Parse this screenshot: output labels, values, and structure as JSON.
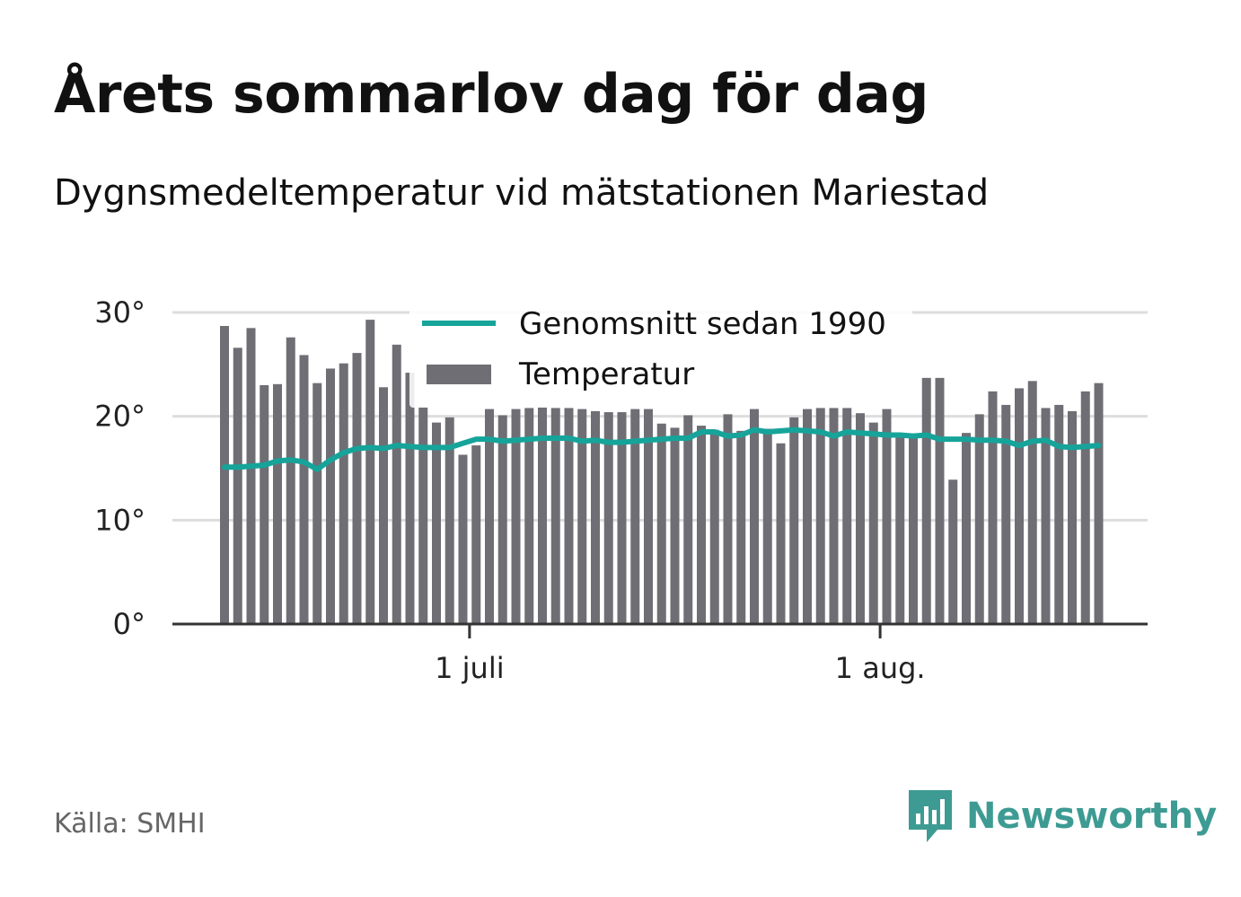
{
  "title": "Årets sommarlov dag för dag",
  "subtitle": "Dygnsmedeltemperatur vid mätstationen Mariestad",
  "source": "Källa: SMHI",
  "brand": "Newsworthy",
  "colors": {
    "bars": "#6f6e75",
    "average_line": "#16a49a",
    "grid": "#dddddd",
    "axis": "#333333",
    "brand": "#3d9b93"
  },
  "chart_data": {
    "type": "bar",
    "x_start": "2019-06-12",
    "ylim": [
      0,
      30
    ],
    "yticks": [
      {
        "value": 0,
        "label": "0°"
      },
      {
        "value": 10,
        "label": "10°"
      },
      {
        "value": 20,
        "label": "20°"
      },
      {
        "value": 30,
        "label": "30°"
      }
    ],
    "xticks": [
      {
        "date": "2019-07-01",
        "label": "1 juli"
      },
      {
        "date": "2019-08-01",
        "label": "1 aug."
      }
    ],
    "grid": true,
    "legend_position": "top",
    "series": [
      {
        "name": "Temperatur",
        "type": "bar",
        "values": [
          28.7,
          26.6,
          28.5,
          23.0,
          23.1,
          27.6,
          25.9,
          23.2,
          24.6,
          25.1,
          26.1,
          29.3,
          22.8,
          26.9,
          24.2,
          20.9,
          19.4,
          19.9,
          16.3,
          17.2,
          20.7,
          20.1,
          20.7,
          20.8,
          20.9,
          20.8,
          20.8,
          20.7,
          20.5,
          20.4,
          20.4,
          20.7,
          20.7,
          19.3,
          18.9,
          20.1,
          19.1,
          18.7,
          20.2,
          18.6,
          20.7,
          18.8,
          17.4,
          19.9,
          20.7,
          20.8,
          20.8,
          20.8,
          20.3,
          19.4,
          20.7,
          18.3,
          17.9,
          23.7,
          23.7,
          13.9,
          18.4,
          20.2,
          22.4,
          21.1,
          22.7,
          23.4,
          20.8,
          21.1,
          20.5,
          22.4,
          23.2
        ]
      },
      {
        "name": "Genomsnitt sedan 1990",
        "type": "line",
        "values": [
          15.1,
          15.1,
          15.2,
          15.3,
          15.7,
          15.8,
          15.6,
          14.9,
          15.8,
          16.5,
          16.9,
          17.0,
          16.9,
          17.2,
          17.1,
          17.0,
          17.0,
          17.0,
          17.4,
          17.8,
          17.8,
          17.6,
          17.7,
          17.8,
          17.9,
          17.9,
          17.9,
          17.6,
          17.7,
          17.5,
          17.5,
          17.6,
          17.7,
          17.8,
          17.9,
          17.9,
          18.5,
          18.5,
          18.1,
          18.2,
          18.7,
          18.5,
          18.6,
          18.7,
          18.6,
          18.5,
          18.1,
          18.5,
          18.4,
          18.3,
          18.2,
          18.2,
          18.1,
          18.2,
          17.8,
          17.8,
          17.8,
          17.7,
          17.7,
          17.6,
          17.2,
          17.6,
          17.7,
          17.1,
          17.0,
          17.1,
          17.2
        ]
      }
    ]
  }
}
